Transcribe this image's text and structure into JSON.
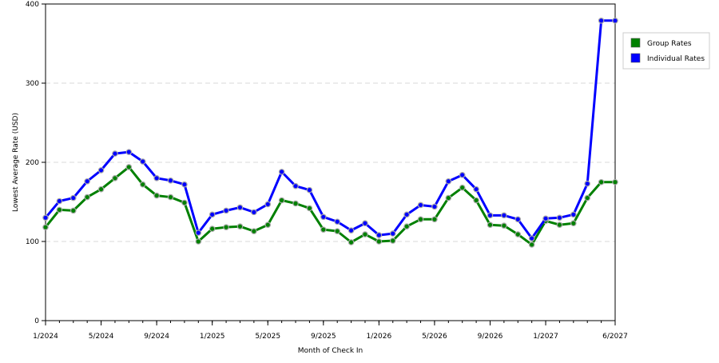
{
  "chart_data": {
    "type": "line",
    "title": "",
    "xlabel": "Month of Check In",
    "ylabel": "Lowest Average Rate (USD)",
    "ylim": [
      0,
      400
    ],
    "yticks": [
      "0",
      "100",
      "200",
      "300",
      "400"
    ],
    "x_tick_labels": [
      "1/2024",
      "5/2024",
      "9/2024",
      "1/2025",
      "5/2025",
      "9/2025",
      "1/2026",
      "5/2026",
      "9/2026",
      "1/2027",
      "6/2027"
    ],
    "x_tick_dates": [
      "2024-01",
      "2024-05",
      "2024-09",
      "2025-01",
      "2025-05",
      "2025-09",
      "2026-01",
      "2026-05",
      "2026-09",
      "2027-01",
      "2027-06"
    ],
    "x": [
      "2024-01",
      "2024-02",
      "2024-03",
      "2024-04",
      "2024-05",
      "2024-06",
      "2024-07",
      "2024-08",
      "2024-09",
      "2024-10",
      "2024-11",
      "2024-12",
      "2025-01",
      "2025-02",
      "2025-03",
      "2025-04",
      "2025-05",
      "2025-06",
      "2025-07",
      "2025-08",
      "2025-09",
      "2025-10",
      "2025-11",
      "2025-12",
      "2026-01",
      "2026-02",
      "2026-03",
      "2026-04",
      "2026-05",
      "2026-06",
      "2026-07",
      "2026-08",
      "2026-09",
      "2026-10",
      "2026-11",
      "2026-12",
      "2027-01",
      "2027-02",
      "2027-03",
      "2027-04",
      "2027-05",
      "2027-06"
    ],
    "grid": true,
    "legend_position": "right",
    "series": [
      {
        "name": "Group Rates",
        "color": "#008000",
        "values": [
          118,
          140,
          139,
          156,
          166,
          180,
          194,
          172,
          158,
          156,
          149,
          100,
          116,
          118,
          119,
          113,
          121,
          152,
          148,
          142,
          115,
          113,
          99,
          109,
          100,
          101,
          119,
          128,
          128,
          155,
          168,
          152,
          121,
          120,
          109,
          96,
          126,
          121,
          123,
          155,
          175,
          175
        ]
      },
      {
        "name": "Individual Rates",
        "color": "#0000ff",
        "values": [
          130,
          151,
          155,
          176,
          190,
          211,
          213,
          201,
          180,
          177,
          172,
          111,
          134,
          139,
          143,
          137,
          147,
          188,
          170,
          165,
          131,
          125,
          114,
          123,
          108,
          110,
          134,
          146,
          144,
          176,
          184,
          166,
          133,
          133,
          128,
          104,
          129,
          130,
          134,
          173,
          379,
          379
        ]
      }
    ]
  }
}
